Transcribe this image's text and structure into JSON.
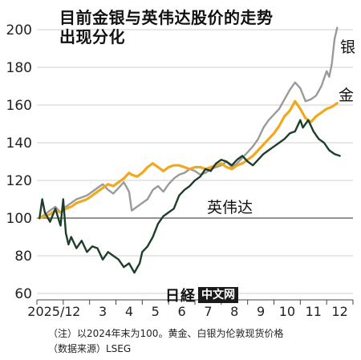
{
  "chart_data": {
    "type": "line",
    "title_lines": [
      "目前金银与英伟达股价的走势",
      "出现分化"
    ],
    "ylim": [
      60,
      200
    ],
    "yticks": [
      60,
      80,
      100,
      120,
      140,
      160,
      180,
      200
    ],
    "xlim": [
      0,
      12
    ],
    "xticks": [
      {
        "x": 0.5,
        "label": "2025/1"
      },
      {
        "x": 1.5,
        "label": "2"
      },
      {
        "x": 2.5,
        "label": "3"
      },
      {
        "x": 3.5,
        "label": "4"
      },
      {
        "x": 4.5,
        "label": "5"
      },
      {
        "x": 5.5,
        "label": "6"
      },
      {
        "x": 6.5,
        "label": "7"
      },
      {
        "x": 7.5,
        "label": "8"
      },
      {
        "x": 8.5,
        "label": "9"
      },
      {
        "x": 9.5,
        "label": "10"
      },
      {
        "x": 10.5,
        "label": "11"
      },
      {
        "x": 11.5,
        "label": "12"
      }
    ],
    "grid": true,
    "baseline": 100,
    "series": [
      {
        "name": "银",
        "color": "#9a9a9a",
        "points": [
          [
            0.1,
            100
          ],
          [
            0.3,
            102
          ],
          [
            0.5,
            104
          ],
          [
            0.7,
            106
          ],
          [
            0.9,
            103
          ],
          [
            1.1,
            106
          ],
          [
            1.3,
            108
          ],
          [
            1.5,
            110
          ],
          [
            1.7,
            111
          ],
          [
            1.9,
            112
          ],
          [
            2.1,
            114
          ],
          [
            2.3,
            116
          ],
          [
            2.5,
            118
          ],
          [
            2.7,
            115
          ],
          [
            2.9,
            113
          ],
          [
            3.1,
            116
          ],
          [
            3.3,
            119
          ],
          [
            3.5,
            114
          ],
          [
            3.6,
            104
          ],
          [
            3.8,
            106
          ],
          [
            4.0,
            108
          ],
          [
            4.2,
            110
          ],
          [
            4.4,
            115
          ],
          [
            4.6,
            117
          ],
          [
            4.8,
            114
          ],
          [
            5.0,
            118
          ],
          [
            5.2,
            121
          ],
          [
            5.4,
            123
          ],
          [
            5.6,
            124
          ],
          [
            5.8,
            126
          ],
          [
            6.0,
            125
          ],
          [
            6.2,
            123
          ],
          [
            6.4,
            124
          ],
          [
            6.6,
            126
          ],
          [
            6.8,
            127
          ],
          [
            7.0,
            128
          ],
          [
            7.2,
            130
          ],
          [
            7.4,
            127
          ],
          [
            7.6,
            129
          ],
          [
            7.8,
            132
          ],
          [
            8.0,
            135
          ],
          [
            8.2,
            138
          ],
          [
            8.4,
            142
          ],
          [
            8.6,
            148
          ],
          [
            8.8,
            152
          ],
          [
            9.0,
            155
          ],
          [
            9.2,
            158
          ],
          [
            9.4,
            163
          ],
          [
            9.6,
            168
          ],
          [
            9.8,
            172
          ],
          [
            10.0,
            169
          ],
          [
            10.2,
            162
          ],
          [
            10.4,
            163
          ],
          [
            10.6,
            165
          ],
          [
            10.8,
            170
          ],
          [
            11.0,
            178
          ],
          [
            11.1,
            175
          ],
          [
            11.2,
            182
          ],
          [
            11.3,
            195
          ],
          [
            11.4,
            201
          ]
        ]
      },
      {
        "name": "金",
        "color": "#f2a81d",
        "points": [
          [
            0.1,
            100
          ],
          [
            0.3,
            101
          ],
          [
            0.5,
            102
          ],
          [
            0.7,
            104
          ],
          [
            0.9,
            103
          ],
          [
            1.1,
            105
          ],
          [
            1.3,
            106
          ],
          [
            1.5,
            108
          ],
          [
            1.7,
            109
          ],
          [
            1.9,
            110
          ],
          [
            2.1,
            112
          ],
          [
            2.3,
            114
          ],
          [
            2.5,
            116
          ],
          [
            2.7,
            118
          ],
          [
            2.9,
            117
          ],
          [
            3.1,
            119
          ],
          [
            3.3,
            121
          ],
          [
            3.5,
            124
          ],
          [
            3.6,
            123
          ],
          [
            3.8,
            122
          ],
          [
            4.0,
            124
          ],
          [
            4.2,
            127
          ],
          [
            4.4,
            129
          ],
          [
            4.6,
            127
          ],
          [
            4.8,
            125
          ],
          [
            5.0,
            127
          ],
          [
            5.2,
            128
          ],
          [
            5.4,
            128
          ],
          [
            5.6,
            127
          ],
          [
            5.8,
            126
          ],
          [
            6.0,
            127
          ],
          [
            6.2,
            127
          ],
          [
            6.4,
            126
          ],
          [
            6.6,
            127
          ],
          [
            6.8,
            128
          ],
          [
            7.0,
            129
          ],
          [
            7.2,
            127
          ],
          [
            7.4,
            126
          ],
          [
            7.6,
            128
          ],
          [
            7.8,
            129
          ],
          [
            8.0,
            131
          ],
          [
            8.2,
            133
          ],
          [
            8.4,
            136
          ],
          [
            8.6,
            139
          ],
          [
            8.8,
            142
          ],
          [
            9.0,
            145
          ],
          [
            9.2,
            149
          ],
          [
            9.4,
            154
          ],
          [
            9.6,
            157
          ],
          [
            9.8,
            162
          ],
          [
            10.0,
            158
          ],
          [
            10.2,
            153
          ],
          [
            10.4,
            151
          ],
          [
            10.6,
            154
          ],
          [
            10.8,
            156
          ],
          [
            11.0,
            158
          ],
          [
            11.2,
            159
          ],
          [
            11.4,
            161
          ]
        ]
      },
      {
        "name": "英伟达",
        "color": "#1d3f2a",
        "points": [
          [
            0.1,
            100
          ],
          [
            0.2,
            110
          ],
          [
            0.3,
            103
          ],
          [
            0.5,
            98
          ],
          [
            0.7,
            105
          ],
          [
            0.9,
            96
          ],
          [
            1.0,
            110
          ],
          [
            1.1,
            92
          ],
          [
            1.2,
            86
          ],
          [
            1.3,
            90
          ],
          [
            1.5,
            84
          ],
          [
            1.7,
            88
          ],
          [
            1.9,
            82
          ],
          [
            2.1,
            85
          ],
          [
            2.3,
            84
          ],
          [
            2.5,
            78
          ],
          [
            2.7,
            82
          ],
          [
            2.9,
            80
          ],
          [
            3.1,
            78
          ],
          [
            3.3,
            74
          ],
          [
            3.5,
            76
          ],
          [
            3.7,
            71
          ],
          [
            3.9,
            76
          ],
          [
            4.0,
            82
          ],
          [
            4.2,
            85
          ],
          [
            4.4,
            90
          ],
          [
            4.6,
            97
          ],
          [
            4.8,
            101
          ],
          [
            5.0,
            103
          ],
          [
            5.2,
            105
          ],
          [
            5.4,
            112
          ],
          [
            5.6,
            115
          ],
          [
            5.8,
            117
          ],
          [
            6.0,
            120
          ],
          [
            6.2,
            122
          ],
          [
            6.4,
            126
          ],
          [
            6.6,
            125
          ],
          [
            6.8,
            129
          ],
          [
            7.0,
            131
          ],
          [
            7.2,
            130
          ],
          [
            7.4,
            128
          ],
          [
            7.6,
            131
          ],
          [
            7.8,
            133
          ],
          [
            8.0,
            130
          ],
          [
            8.2,
            128
          ],
          [
            8.4,
            131
          ],
          [
            8.6,
            134
          ],
          [
            8.8,
            136
          ],
          [
            9.0,
            138
          ],
          [
            9.2,
            140
          ],
          [
            9.4,
            142
          ],
          [
            9.6,
            145
          ],
          [
            9.8,
            146
          ],
          [
            10.0,
            152
          ],
          [
            10.1,
            148
          ],
          [
            10.3,
            152
          ],
          [
            10.5,
            146
          ],
          [
            10.7,
            142
          ],
          [
            10.9,
            140
          ],
          [
            11.1,
            136
          ],
          [
            11.3,
            134
          ],
          [
            11.5,
            133
          ]
        ]
      }
    ],
    "series_labels": [
      {
        "name": "银",
        "text": "银"
      },
      {
        "name": "金",
        "text": "金"
      },
      {
        "name": "英伟达",
        "text": "英伟达"
      }
    ],
    "notes": [
      "（注）以2024年末为100。黄金、白银为伦敦现货价格",
      "（数据来源）LSEG"
    ]
  },
  "logo": {
    "mark": "日経",
    "box": "中文网"
  }
}
